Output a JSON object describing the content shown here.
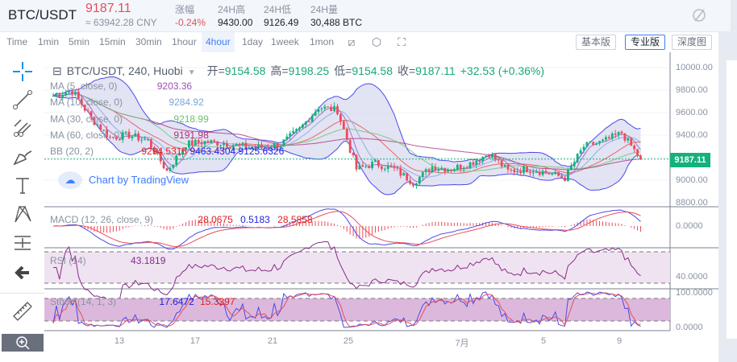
{
  "header": {
    "symbol": "BTC/USDT",
    "price": "9187.11",
    "cny": "≈ 63942.28 CNY",
    "stats": [
      {
        "label": "涨幅",
        "value": "-0.24%",
        "color": "#ea4d5a"
      },
      {
        "label": "24H高",
        "value": "9430.00"
      },
      {
        "label": "24H低",
        "value": "9126.49"
      },
      {
        "label": "24H量",
        "value": "30,488 BTC"
      }
    ],
    "icon": "theme-toggle-icon"
  },
  "toolbar": {
    "timeframes": [
      "Time",
      "1min",
      "5min",
      "15min",
      "30min",
      "1hour",
      "4hour",
      "1day",
      "1week",
      "1mon"
    ],
    "active": "4hour",
    "icons": [
      "indicator-icon",
      "settings-icon",
      "fullscreen-icon"
    ],
    "views": [
      "基本版",
      "专业版",
      "深度图"
    ],
    "active_view": "专业版"
  },
  "drawing_tools": [
    "crosshair-icon",
    "trend-line-icon",
    "fib-icon",
    "brush-icon",
    "text-icon",
    "pattern-icon",
    "measure-lines-icon",
    "back-arrow-icon",
    "ruler-icon",
    "zoom-icon"
  ],
  "legend": {
    "title": "BTC/USDT, 240, Huobi",
    "open_label": "开=",
    "open": "9154.58",
    "high_label": "高=",
    "high": "9198.25",
    "low_label": "低=",
    "low": "9154.58",
    "close_label": "收=",
    "close": "9187.11",
    "change": "+32.53 (+0.36%)",
    "ma5": {
      "label": "MA (5, close, 0)",
      "value": "9203.36",
      "color": "#a052b8"
    },
    "ma10": {
      "label": "MA (10, close, 0)",
      "value": "9284.92",
      "color": "#7aa6dc"
    },
    "ma30": {
      "label": "MA (30, close, 0)",
      "value": "9218.99",
      "color": "#6cc06c"
    },
    "ma60": {
      "label": "MA (60, close, 0)",
      "value": "9191.98",
      "color": "#b0307a"
    },
    "bb": {
      "label": "BB (20, 2)",
      "values": [
        "9294.5315",
        "9463.4304",
        "9125.6326"
      ]
    },
    "watermark": "Chart by TradingView",
    "macd": {
      "label": "MACD (12, 26, close, 9)",
      "values": [
        "28.0675",
        "0.5183",
        "28.5858"
      ]
    },
    "rsi": {
      "label": "RSI (14)",
      "value": "43.1819"
    },
    "stoch": {
      "label": "Stoch (14, 1, 3)",
      "values": [
        "17.6472",
        "15.3297"
      ]
    }
  },
  "axes": {
    "price_ticks": [
      "10000.00",
      "9800.00",
      "9600.00",
      "9400.00",
      "9200.00",
      "9000.00",
      "8800.00"
    ],
    "macd_tick": "0.0000",
    "rsi_tick": "40.0000",
    "stoch_ticks": [
      "100.0000",
      "0.0000"
    ],
    "x_labels": [
      "13",
      "17",
      "21",
      "25",
      "7月",
      "5",
      "9"
    ],
    "last_price": "9187.11"
  },
  "chart_data": {
    "type": "candlestick",
    "interval": "4hour",
    "ylim": [
      8800,
      10000
    ],
    "daily_close_approx": {
      "dates": [
        "6/10",
        "6/11",
        "6/12",
        "6/13",
        "6/14",
        "6/15",
        "6/16",
        "6/17",
        "6/18",
        "6/19",
        "6/20",
        "6/21",
        "6/22",
        "6/23",
        "6/24",
        "6/25",
        "6/26",
        "6/27",
        "6/28",
        "6/29",
        "6/30",
        "7/1",
        "7/2",
        "7/3",
        "7/4",
        "7/5",
        "7/6",
        "7/7",
        "7/8",
        "7/9",
        "7/10",
        "7/11"
      ],
      "values": [
        9750,
        9800,
        9550,
        9380,
        9400,
        9350,
        9080,
        9320,
        9340,
        9330,
        9300,
        9290,
        9320,
        9450,
        9650,
        9620,
        9100,
        9150,
        9100,
        8980,
        9120,
        9100,
        9150,
        9240,
        9080,
        9100,
        9070,
        9020,
        9300,
        9340,
        9420,
        9187
      ]
    },
    "colors": {
      "up": "#14b17e",
      "down": "#ea4d5a"
    }
  }
}
